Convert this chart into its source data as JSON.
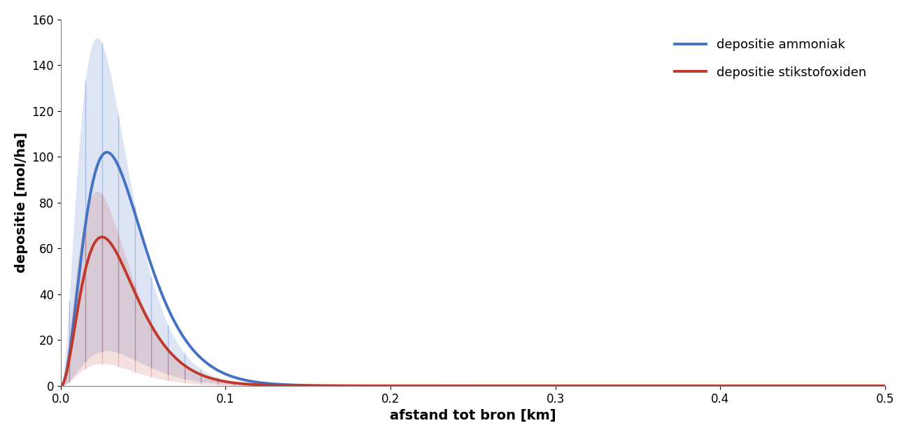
{
  "xlabel": "afstand tot bron [km]",
  "ylabel": "depositie [mol/ha]",
  "xlim": [
    0,
    0.5
  ],
  "ylim": [
    0,
    160
  ],
  "yticks": [
    0,
    20,
    40,
    60,
    80,
    100,
    120,
    140,
    160
  ],
  "xticks": [
    0,
    0.1,
    0.2,
    0.3,
    0.4,
    0.5
  ],
  "blue_color": "#4472C4",
  "red_color": "#C0392B",
  "blue_fill_alpha": 0.18,
  "red_fill_alpha": 0.15,
  "errorbar_alpha_blue": 0.35,
  "errorbar_alpha_red": 0.25,
  "legend_labels": [
    "depositie ammoniak",
    "depositie stikstofoxiden"
  ],
  "background_color": "#ffffff",
  "label_fontsize": 14,
  "tick_fontsize": 12,
  "legend_fontsize": 13
}
